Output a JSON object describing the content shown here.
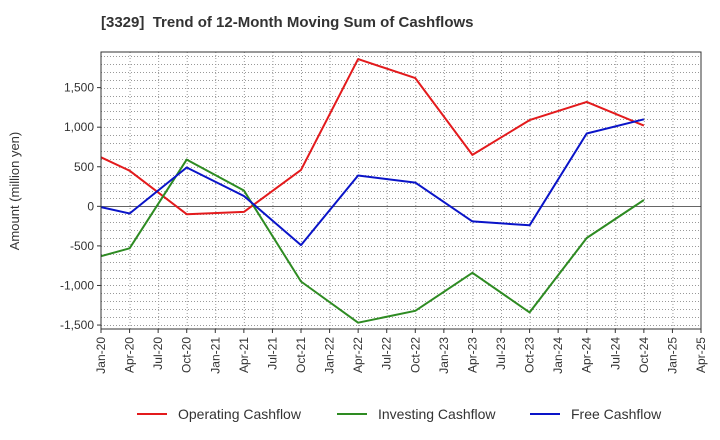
{
  "chart_data": {
    "type": "line",
    "title": "[3329]  Trend of 12-Month Moving Sum of Cashflows",
    "ylabel": "Amount (million yen)",
    "xlabel": "",
    "ylim": [
      -1550,
      1950
    ],
    "yticks": [
      -1500,
      -1000,
      -500,
      0,
      500,
      1000,
      1500
    ],
    "ytick_labels": [
      "-1,500",
      "-1,000",
      "-500",
      "0",
      "500",
      "1,000",
      "1,500"
    ],
    "x": [
      "Jan-20",
      "Apr-20",
      "Jul-20",
      "Oct-20",
      "Jan-21",
      "Apr-21",
      "Jul-21",
      "Oct-21",
      "Jan-22",
      "Apr-22",
      "Jul-22",
      "Oct-22",
      "Jan-23",
      "Apr-23",
      "Jul-23",
      "Oct-23",
      "Jan-24",
      "Apr-24",
      "Jul-24",
      "Oct-24",
      "Jan-25",
      "Apr-25"
    ],
    "grid": true,
    "legend_position": "bottom",
    "series": [
      {
        "name": "Operating Cashflow",
        "color": "#e31a1c",
        "values": [
          620,
          450,
          null,
          -100,
          null,
          -70,
          null,
          460,
          null,
          1860,
          null,
          1620,
          null,
          650,
          null,
          1090,
          null,
          1320,
          null,
          1020,
          null,
          null
        ]
      },
      {
        "name": "Investing Cashflow",
        "color": "#2e8b22",
        "values": [
          -630,
          -530,
          null,
          590,
          null,
          200,
          null,
          -950,
          null,
          -1470,
          null,
          -1320,
          null,
          -840,
          null,
          -1340,
          null,
          -400,
          null,
          80,
          null,
          null
        ]
      },
      {
        "name": "Free Cashflow",
        "color": "#0a14c8",
        "values": [
          -10,
          -90,
          null,
          490,
          null,
          130,
          null,
          -490,
          null,
          390,
          null,
          300,
          null,
          -190,
          null,
          -240,
          null,
          920,
          null,
          1100,
          null,
          null
        ]
      }
    ]
  }
}
